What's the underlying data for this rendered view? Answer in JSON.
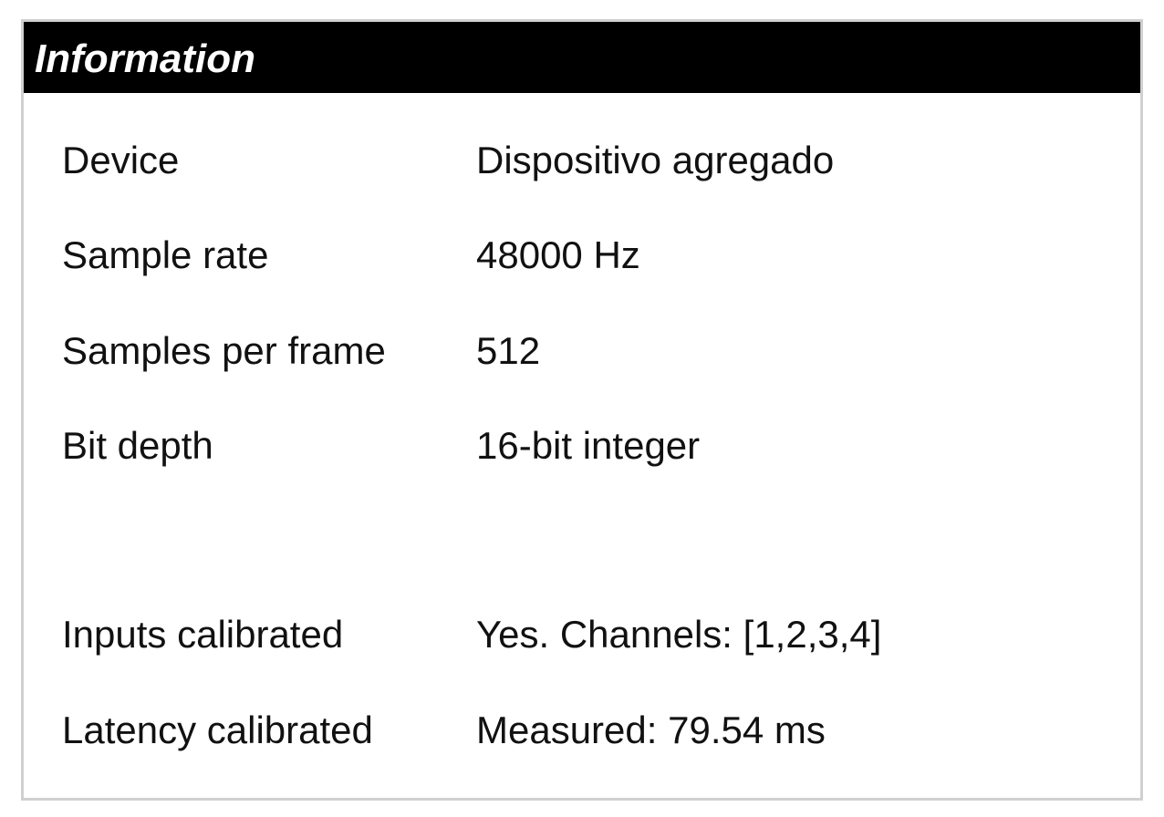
{
  "panel": {
    "title": "Information",
    "rows": [
      {
        "label": "Device",
        "value": "Dispositivo agregado"
      },
      {
        "label": "Sample rate",
        "value": "48000 Hz"
      },
      {
        "label": "Samples per frame",
        "value": "512"
      },
      {
        "label": "Bit depth",
        "value": "16-bit integer"
      },
      {
        "label": "Inputs calibrated",
        "value": "Yes. Channels: [1,2,3,4]"
      },
      {
        "label": "Latency calibrated",
        "value": "Measured: 79.54 ms"
      }
    ]
  },
  "colors": {
    "header_background": "#000000",
    "header_text": "#ffffff",
    "border": "#d0d0d0",
    "text": "#111111"
  }
}
